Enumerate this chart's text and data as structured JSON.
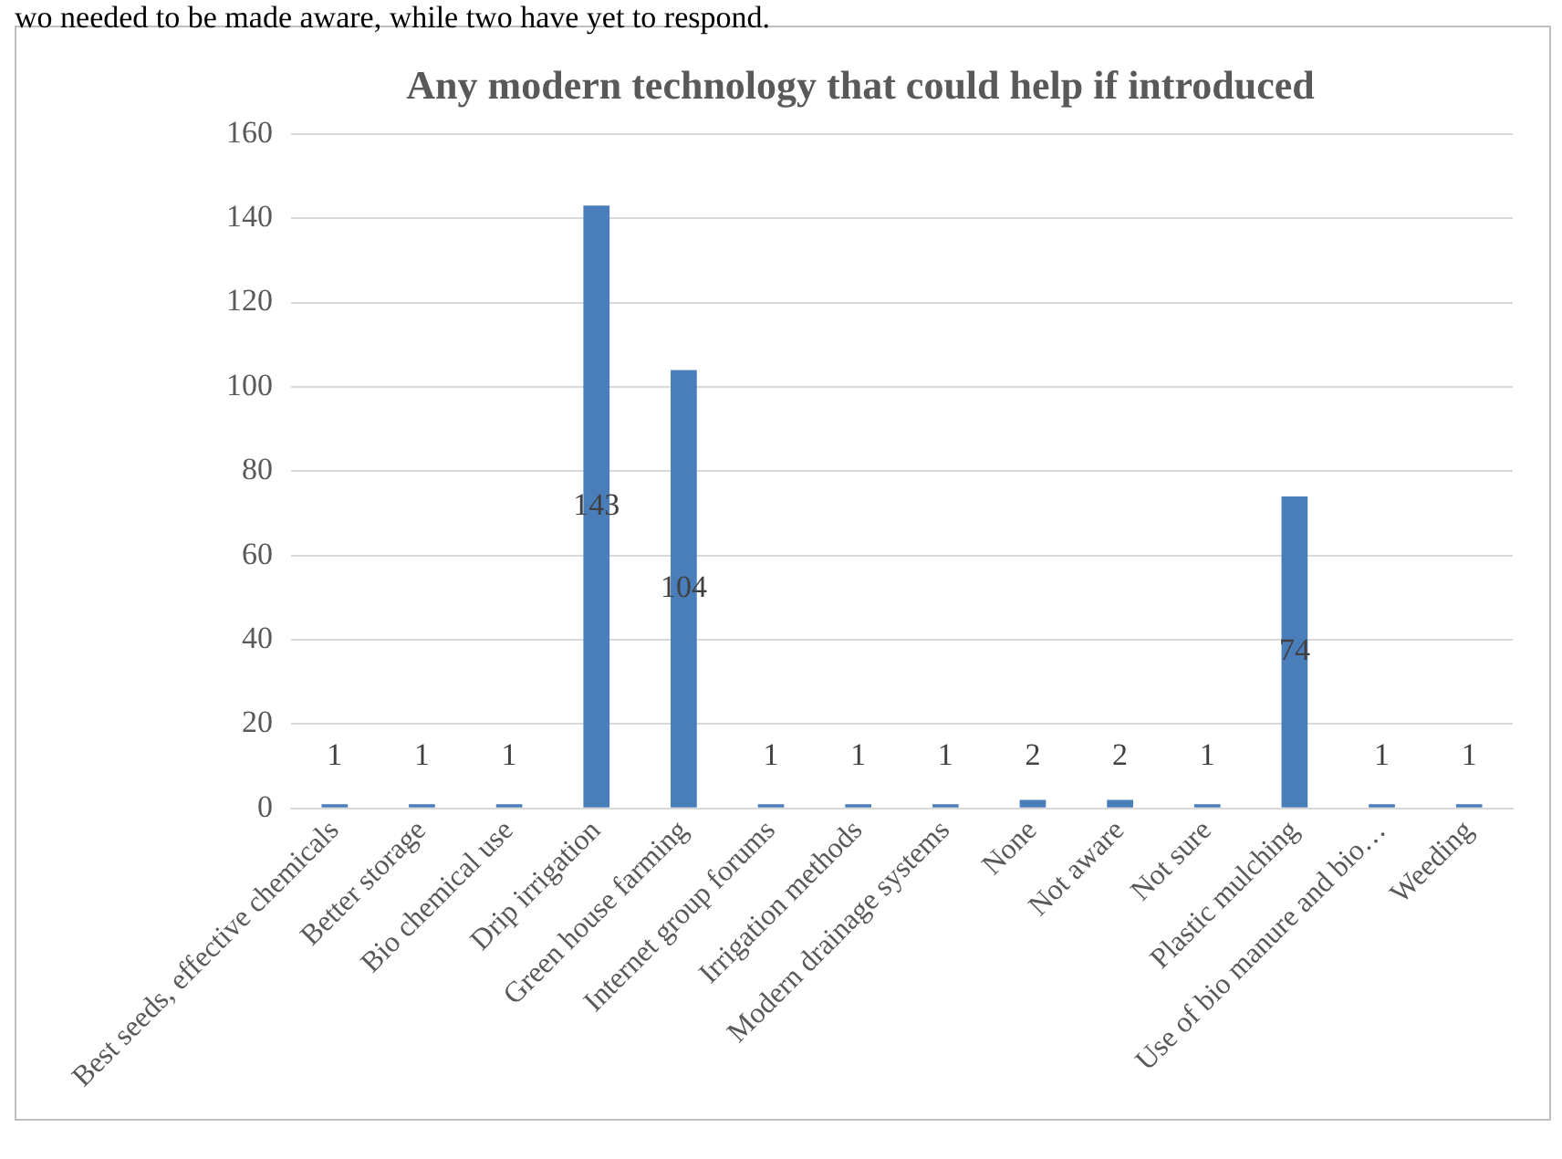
{
  "chart_data": {
    "type": "bar",
    "title": "Any modern technology that could help if introduced",
    "annotations": [
      "wo needed to be made aware, while two have yet to respond."
    ],
    "categories": [
      "Best seeds, effective chemicals",
      "Better storage",
      "Bio chemical use",
      "Drip irrigation",
      "Green house farming",
      "Internet group forums",
      "Irrigation methods",
      "Modern drainage systems",
      "None",
      "Not aware",
      "Not sure",
      "Plastic mulching",
      "Use of bio manure and bio…",
      "Weeding"
    ],
    "values": [
      1,
      1,
      1,
      143,
      104,
      1,
      1,
      1,
      2,
      2,
      1,
      74,
      1,
      1
    ],
    "color": "#4a7ebb",
    "ylim": [
      0,
      160
    ],
    "yticks": [
      0,
      20,
      40,
      60,
      80,
      100,
      120,
      140,
      160
    ],
    "grid": "y",
    "data_labels": true,
    "legend": false
  }
}
